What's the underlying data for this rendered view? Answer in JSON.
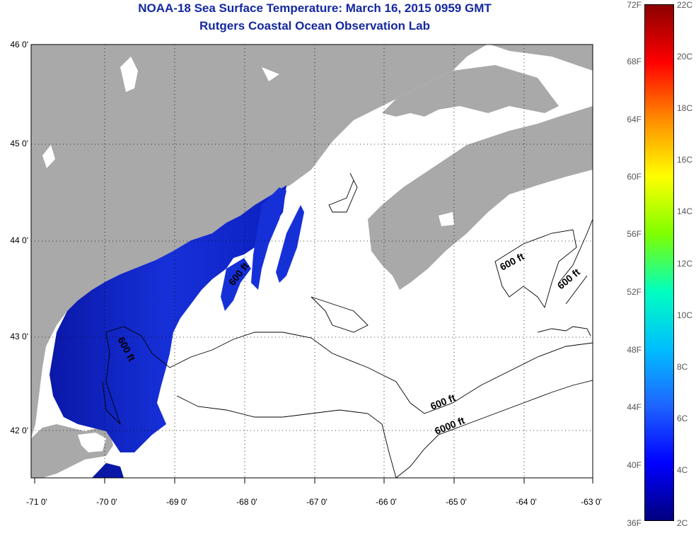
{
  "title_line1": "NOAA-18 Sea Surface Temperature:  March 16, 2015 0959 GMT",
  "title_line2": "Rutgers Coastal Ocean Observation Lab",
  "lat_ticks": [
    "46 0'",
    "45 0'",
    "44 0'",
    "43 0'",
    "42 0'"
  ],
  "lon_ticks": [
    "-71 0'",
    "-70 0'",
    "-69 0'",
    "-68 0'",
    "-67 0'",
    "-66 0'",
    "-65 0'",
    "-64 0'",
    "-63 0'"
  ],
  "contour_labels": [
    "600 ft",
    "600 ft",
    "600 ft",
    "600 ft",
    "600 ft",
    "6000 ft"
  ],
  "colorbar": {
    "fahrenheit": [
      "72F",
      "68F",
      "64F",
      "60F",
      "56F",
      "52F",
      "48F",
      "44F",
      "40F",
      "36F"
    ],
    "celsius": [
      "22C",
      "20C",
      "18C",
      "16C",
      "14C",
      "12C",
      "10C",
      "8C",
      "6C",
      "4C",
      "2C"
    ],
    "colors": [
      "#8b0000",
      "#ff0000",
      "#ff8c00",
      "#ffff00",
      "#7fff00",
      "#00ffc0",
      "#00bfff",
      "#1e64ff",
      "#0000ff",
      "#00007f"
    ]
  },
  "colors": {
    "land": "#a9a9a9",
    "water": "#ffffff",
    "sst_cold": "#1020c8",
    "title": "#1428a0"
  }
}
